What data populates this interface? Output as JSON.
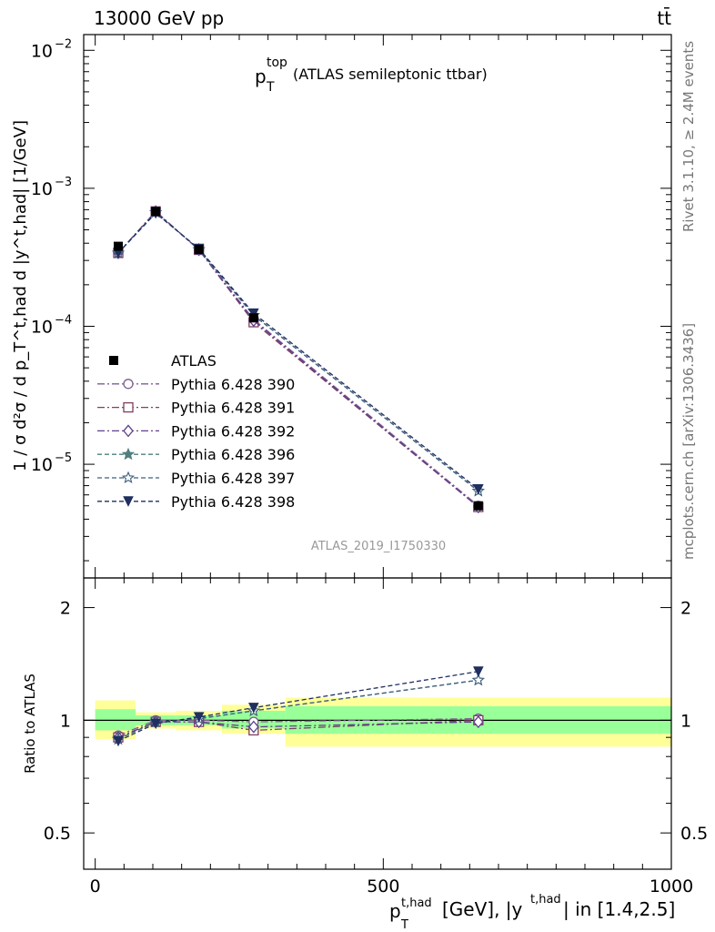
{
  "header": {
    "energy": "13000 GeV pp",
    "process": "tt̄"
  },
  "side_labels": {
    "rivet": "Rivet 3.1.10, ≥ 2.4M events",
    "mcplots": "mcplots.cern.ch [arXiv:1306.3436]"
  },
  "analysis_id": "ATLAS_2019_I1750330",
  "colors": {
    "data": "#000000",
    "band_inner": "#99ff99",
    "band_outer": "#ffff99",
    "p390": "#7f5f8f",
    "p391": "#7f3f5f",
    "p392": "#5f3f8f",
    "p396": "#4f7f7f",
    "p397": "#3f5f7f",
    "p398": "#1f2f5f"
  },
  "chart_data": [
    {
      "type": "line",
      "title": "p_T^top (ATLAS semileptonic ttbar)",
      "title_parts": {
        "main": "p",
        "sub": "T",
        "sup": "top",
        "rest": "(ATLAS semileptonic ttbar)"
      },
      "ylabel": "1 / σ d²σ / d p_T^t,had d |y^t,had| [1/GeV]",
      "yscale": "log",
      "ylim": [
        1.5e-06,
        0.013
      ],
      "xlim": [
        -20,
        1000
      ],
      "yticks": [
        {
          "value": 0.01,
          "base": "10",
          "exp": "−2"
        },
        {
          "value": 0.001,
          "base": "10",
          "exp": "−3"
        },
        {
          "value": 0.0001,
          "base": "10",
          "exp": "−4"
        },
        {
          "value": 1e-05,
          "base": "10",
          "exp": "−5"
        }
      ],
      "legend_position": "middle-left",
      "x": [
        40,
        105,
        180,
        275,
        665
      ],
      "data_series": {
        "name": "ATLAS",
        "values": [
          0.00038,
          0.00068,
          0.00036,
          0.000115,
          5e-06
        ]
      },
      "series": [
        {
          "name": "Pythia 6.428 390",
          "key": "p390",
          "marker": "open-circle",
          "dash": "dashdot",
          "values": [
            0.00034,
            0.00068,
            0.000358,
            0.000112,
            5e-06
          ]
        },
        {
          "name": "Pythia 6.428 391",
          "key": "p391",
          "marker": "open-square",
          "dash": "dashdot",
          "values": [
            0.00034,
            0.00068,
            0.000358,
            0.000107,
            4.9e-06
          ]
        },
        {
          "name": "Pythia 6.428 392",
          "key": "p392",
          "marker": "open-diamond",
          "dash": "dashdot",
          "values": [
            0.00034,
            0.00068,
            0.000358,
            0.00011,
            4.9e-06
          ]
        },
        {
          "name": "Pythia 6.428 396",
          "key": "p396",
          "marker": "filled-star",
          "dash": "dashed",
          "values": [
            0.00034,
            0.00067,
            0.00036,
            0.00012,
            6.4e-06
          ]
        },
        {
          "name": "Pythia 6.428 397",
          "key": "p397",
          "marker": "open-star",
          "dash": "dashed",
          "values": [
            0.00034,
            0.00067,
            0.00036,
            0.00012,
            6.4e-06
          ]
        },
        {
          "name": "Pythia 6.428 398",
          "key": "p398",
          "marker": "filled-triangle-down",
          "dash": "dashed",
          "values": [
            0.00034,
            0.00066,
            0.000365,
            0.000124,
            6.6e-06
          ]
        }
      ]
    },
    {
      "type": "line",
      "ylabel": "Ratio to ATLAS",
      "yscale": "log",
      "ylim": [
        0.4,
        2.4
      ],
      "xlim": [
        -20,
        1000
      ],
      "xlabel": "p_T^t,had [GeV], |y^t,had| in [1.4,2.5]",
      "xlabel_parts": {
        "p": "p",
        "sub": "T",
        "sup": "t,had",
        "mid": "[GeV], |y",
        "sup2": "t,had",
        "end": "| in [1.4,2.5]"
      },
      "yticks": [
        {
          "value": 0.5,
          "label": "0.5"
        },
        {
          "value": 1,
          "label": "1"
        },
        {
          "value": 2,
          "label": "2"
        }
      ],
      "xticks": [
        {
          "value": 0,
          "label": "0"
        },
        {
          "value": 500,
          "label": "500"
        },
        {
          "value": 1000,
          "label": "1000"
        }
      ],
      "reference": 1,
      "bands": [
        {
          "x0": 0,
          "x1": 70,
          "inner": [
            0.94,
            1.07
          ],
          "outer": [
            0.89,
            1.13
          ]
        },
        {
          "x0": 70,
          "x1": 140,
          "inner": [
            0.97,
            1.03
          ],
          "outer": [
            0.95,
            1.05
          ]
        },
        {
          "x0": 140,
          "x1": 220,
          "inner": [
            0.97,
            1.03
          ],
          "outer": [
            0.94,
            1.06
          ]
        },
        {
          "x0": 220,
          "x1": 330,
          "inner": [
            0.95,
            1.06
          ],
          "outer": [
            0.92,
            1.1
          ]
        },
        {
          "x0": 330,
          "x1": 1000,
          "inner": [
            0.92,
            1.09
          ],
          "outer": [
            0.85,
            1.15
          ]
        }
      ],
      "x": [
        40,
        105,
        180,
        275,
        665
      ],
      "series": [
        {
          "key": "p390",
          "values": [
            0.91,
            1.0,
            1.0,
            0.99,
            1.01
          ]
        },
        {
          "key": "p391",
          "values": [
            0.9,
            0.99,
            0.99,
            0.94,
            1.0
          ]
        },
        {
          "key": "p392",
          "values": [
            0.9,
            0.99,
            0.99,
            0.96,
            0.99
          ]
        },
        {
          "key": "p396",
          "values": [
            0.89,
            0.99,
            1.01,
            1.06,
            1.28
          ]
        },
        {
          "key": "p397",
          "values": [
            0.89,
            0.99,
            1.01,
            1.06,
            1.28
          ]
        },
        {
          "key": "p398",
          "values": [
            0.88,
            0.98,
            1.02,
            1.08,
            1.35
          ]
        }
      ]
    }
  ]
}
